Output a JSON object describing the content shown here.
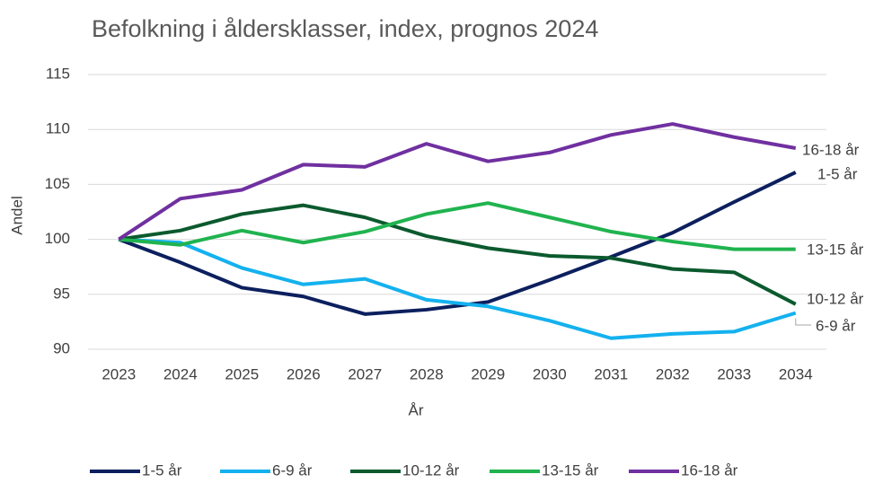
{
  "chart_data": {
    "type": "line",
    "title": "Befolkning i åldersklasser, index, prognos 2024",
    "x_label": "År",
    "y_label": "Andel",
    "categories": [
      "2023",
      "2024",
      "2025",
      "2026",
      "2027",
      "2028",
      "2029",
      "2030",
      "2031",
      "2032",
      "2033",
      "2034"
    ],
    "series": [
      {
        "name": "1-5 år",
        "color": "#0c1f5e",
        "values": [
          100,
          97.9,
          95.6,
          94.8,
          93.2,
          93.6,
          94.3,
          96.3,
          98.4,
          100.6,
          103.4,
          106.1
        ]
      },
      {
        "name": "6-9 år",
        "color": "#14b1ee",
        "values": [
          100,
          99.7,
          97.4,
          95.9,
          96.4,
          94.5,
          93.9,
          92.6,
          91.0,
          91.4,
          91.6,
          93.3
        ]
      },
      {
        "name": "10-12 år",
        "color": "#0b5a2e",
        "values": [
          100,
          100.8,
          102.3,
          103.1,
          102.0,
          100.3,
          99.2,
          98.5,
          98.3,
          97.3,
          97.0,
          94.1
        ]
      },
      {
        "name": "13-15 år",
        "color": "#20b34f",
        "values": [
          100,
          99.5,
          100.8,
          99.7,
          100.7,
          102.3,
          103.3,
          102.0,
          100.7,
          99.8,
          99.1,
          99.1
        ]
      },
      {
        "name": "16-18 år",
        "color": "#7030a0",
        "values": [
          100,
          103.7,
          104.5,
          106.8,
          106.6,
          108.7,
          107.1,
          107.9,
          109.5,
          110.5,
          109.3,
          108.3
        ]
      }
    ],
    "ylim": [
      90,
      115
    ],
    "yticks": [
      90,
      95,
      100,
      105,
      110,
      115
    ],
    "grid": true,
    "legend": "bottom"
  }
}
